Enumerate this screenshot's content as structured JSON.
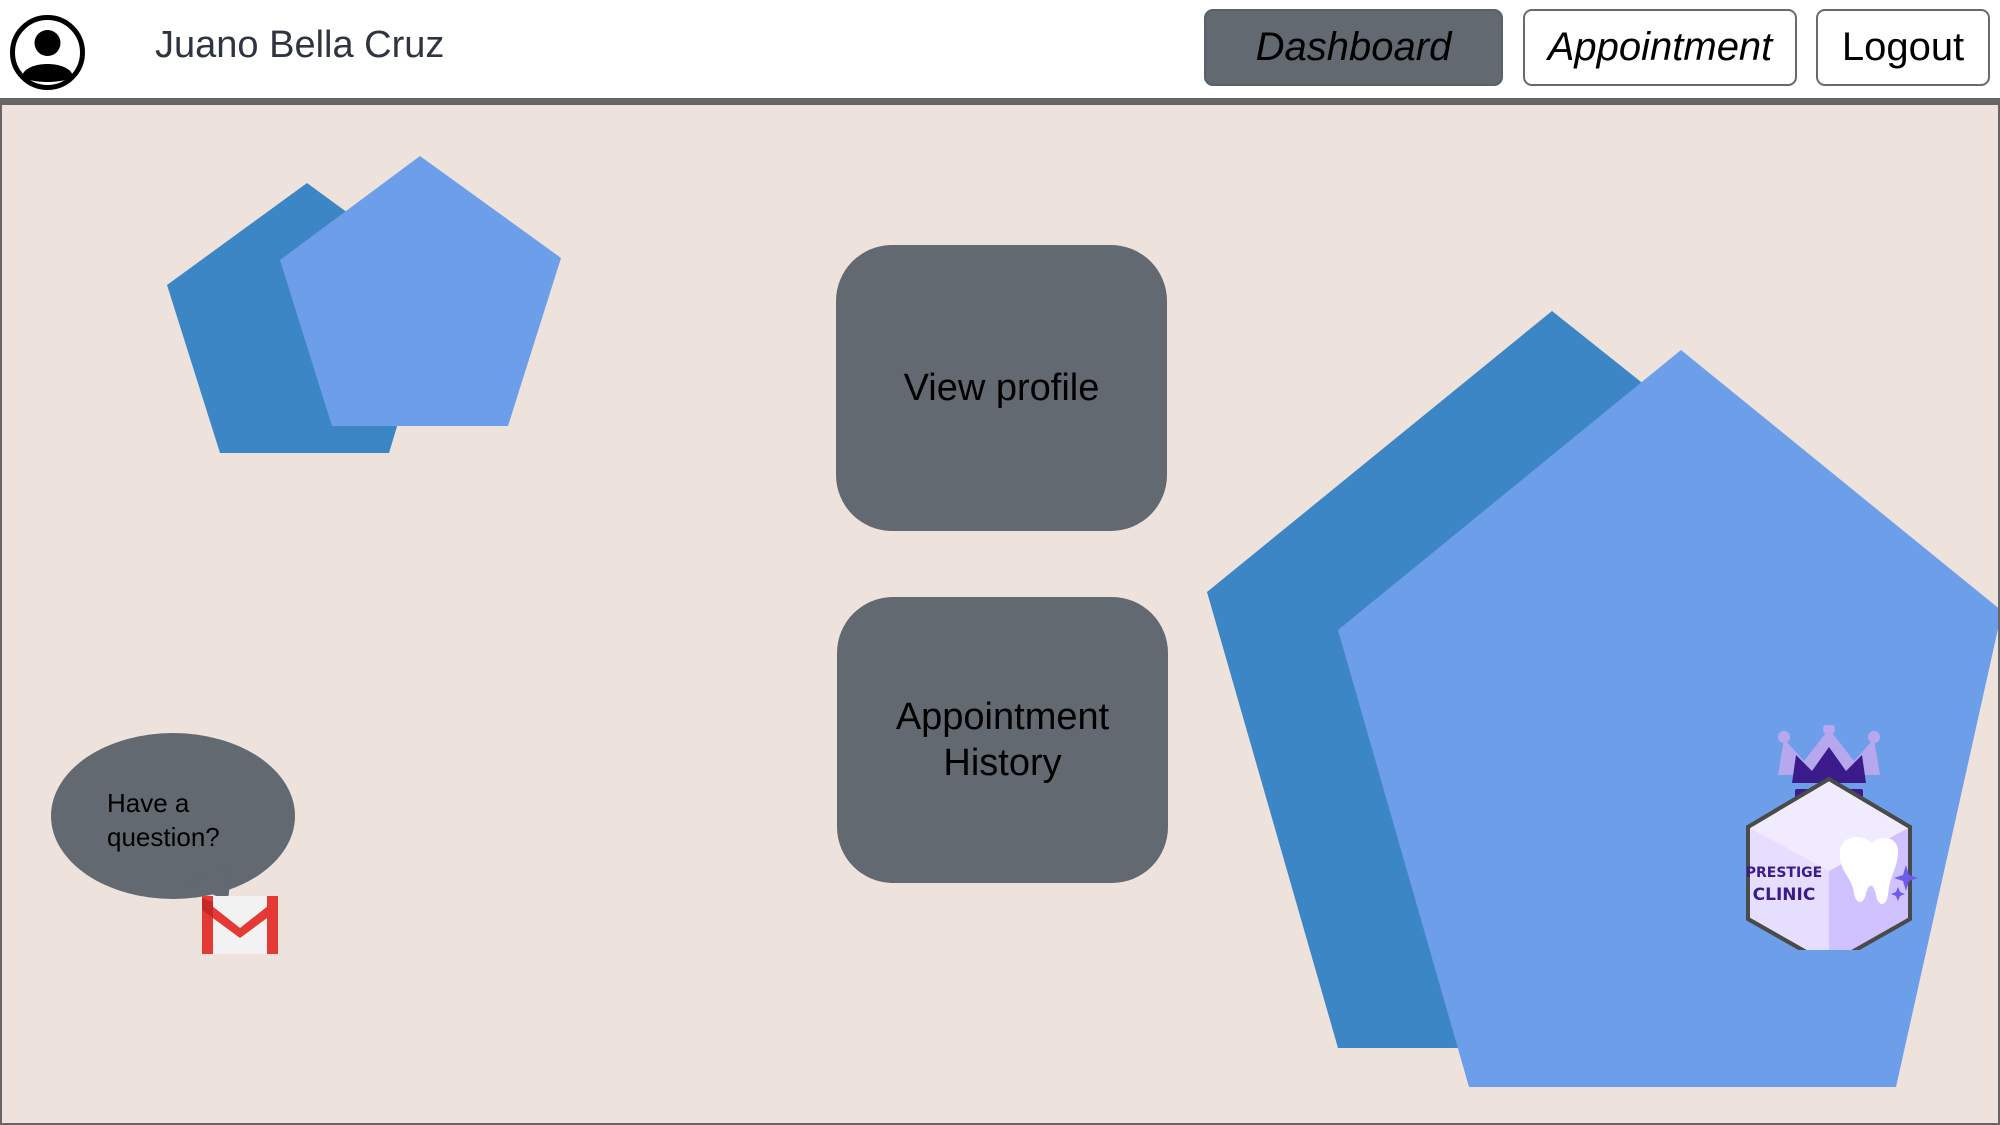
{
  "header": {
    "username": "Juano Bella Cruz",
    "nav": {
      "dashboard": "Dashboard",
      "appointment": "Appointment",
      "logout": "Logout"
    }
  },
  "main": {
    "tiles": {
      "view_profile": "View profile",
      "appointment_history_line1": "Appointment",
      "appointment_history_line2": "History"
    },
    "help": {
      "line1": "Have a",
      "line2": "question?"
    },
    "logo": {
      "line1": "PRESTIGE",
      "line2": "CLINIC"
    }
  },
  "colors": {
    "background": "#ede3dc",
    "tile": "#636970",
    "pentagon_dark": "#3d86c6",
    "pentagon_light": "#6d9eea",
    "gmail_red": "#e53935",
    "logo_purple": "#3b1a8c"
  },
  "icons": {
    "avatar": "user-avatar-icon",
    "mail": "gmail-icon",
    "logo": "prestige-clinic-logo"
  }
}
